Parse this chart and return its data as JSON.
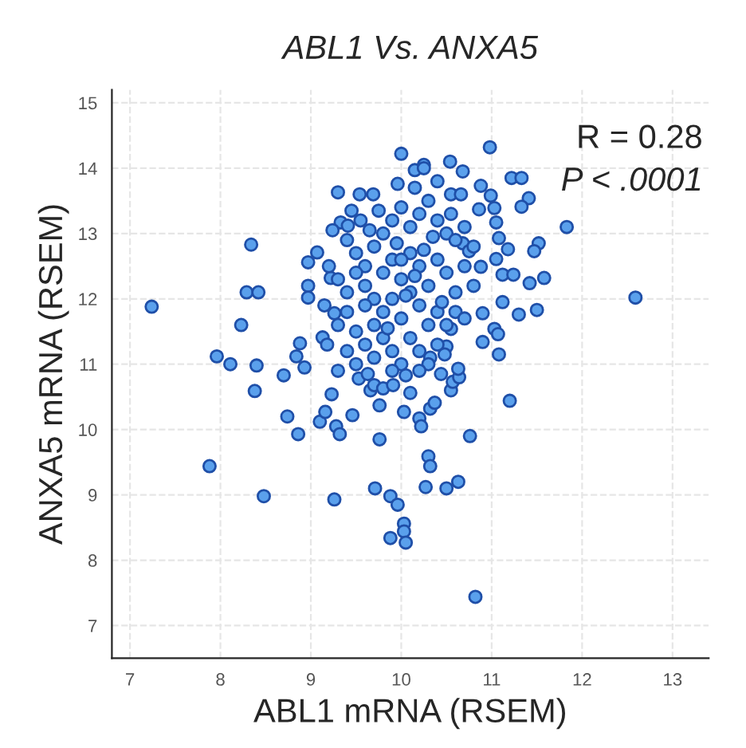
{
  "chart_data": {
    "type": "scatter",
    "title": "ABL1 Vs. ANXA5",
    "xlabel": "ABL1 mRNA (RSEM)",
    "ylabel": "ANXA5 mRNA (RSEM)",
    "annotations": [
      "R = 0.28",
      "P < .0001"
    ],
    "xlim": [
      6.8,
      13.4
    ],
    "ylim": [
      6.5,
      15.2
    ],
    "xticks": [
      7,
      8,
      9,
      10,
      11,
      12,
      13
    ],
    "yticks": [
      7,
      8,
      9,
      10,
      11,
      12,
      13,
      14,
      15
    ],
    "grid": true,
    "marker": "circle",
    "series": [
      {
        "color": "#5aa0ec",
        "x": [
          7.24,
          8.34,
          8.29,
          8.42,
          8.23,
          7.96,
          8.11,
          8.4,
          8.7,
          8.88,
          8.84,
          8.93,
          10.0,
          10.15,
          10.25,
          9.96,
          9.3,
          9.54,
          9.69,
          9.33,
          9.41,
          9.24,
          9.07,
          8.97,
          8.97,
          8.97,
          9.22,
          9.26,
          9.13,
          9.18,
          8.38,
          8.74,
          8.86,
          7.88,
          8.48,
          9.26,
          9.1,
          9.16,
          9.28,
          9.32,
          9.46,
          9.23,
          9.3,
          9.53,
          9.63,
          9.66,
          9.76,
          9.76,
          10.03,
          9.71,
          9.88,
          9.96,
          9.88,
          10.03,
          10.03,
          10.05,
          10.2,
          10.22,
          10.3,
          10.32,
          10.27,
          9.7,
          9.8,
          9.91,
          10.05,
          10.1,
          10.32,
          10.5,
          10.63,
          10.76,
          11.2,
          10.82,
          10.37,
          10.55,
          10.57,
          10.64,
          10.44,
          10.98,
          10.54,
          10.68,
          11.22,
          11.33,
          10.88,
          10.99,
          11.41,
          11.33,
          11.83,
          12.59,
          11.52,
          11.47,
          11.18,
          11.05,
          11.12,
          11.24,
          11.58,
          11.42,
          10.88,
          11.12,
          11.3,
          11.5,
          10.9,
          11.03,
          11.07,
          10.9,
          11.08,
          10.55,
          10.5,
          10.48,
          10.63,
          10.32,
          10.55,
          10.66,
          10.86,
          11.03,
          11.05,
          10.68,
          10.75,
          11.08,
          9.4,
          9.5,
          9.6,
          9.7,
          9.8,
          9.9,
          10.0,
          10.1,
          10.2,
          10.3,
          10.4,
          10.5,
          10.6,
          9.3,
          9.4,
          9.5,
          9.6,
          9.7,
          9.8,
          9.9,
          10.0,
          10.1,
          10.2,
          10.3,
          10.4,
          10.5,
          10.6,
          10.7,
          10.8,
          9.3,
          9.4,
          9.5,
          9.6,
          9.7,
          9.8,
          9.9,
          10.0,
          10.1,
          10.2,
          10.3,
          10.4,
          10.5,
          10.6,
          10.7,
          9.4,
          9.5,
          9.6,
          9.7,
          9.8,
          9.9,
          10.0,
          10.1,
          10.2,
          10.3,
          10.4,
          10.2,
          9.9,
          9.55,
          9.75,
          9.95,
          10.05,
          10.15,
          9.85,
          10.25,
          10.35,
          10.45,
          10.0,
          9.65,
          10.15,
          10.4,
          10.25,
          9.45,
          10.55,
          10.7,
          10.8,
          9.2,
          9.15
        ],
        "values": [
          11.88,
          12.83,
          12.1,
          12.1,
          11.6,
          11.12,
          11.0,
          10.98,
          10.83,
          11.32,
          11.12,
          10.95,
          14.22,
          13.97,
          14.05,
          13.76,
          13.63,
          13.6,
          13.6,
          13.17,
          13.12,
          13.05,
          12.71,
          12.56,
          12.2,
          12.02,
          12.32,
          11.78,
          11.41,
          11.3,
          10.59,
          10.2,
          9.93,
          9.44,
          8.98,
          8.93,
          10.12,
          10.27,
          10.05,
          9.93,
          10.22,
          10.54,
          10.9,
          10.78,
          10.85,
          10.6,
          10.37,
          9.85,
          10.27,
          9.1,
          8.98,
          8.85,
          8.34,
          8.56,
          8.44,
          8.27,
          10.17,
          10.05,
          9.59,
          9.44,
          9.12,
          10.68,
          10.63,
          10.68,
          10.83,
          10.56,
          10.32,
          9.1,
          9.2,
          9.9,
          10.44,
          7.44,
          10.41,
          10.6,
          10.73,
          10.8,
          10.85,
          14.32,
          14.1,
          13.95,
          13.85,
          13.85,
          13.73,
          13.58,
          13.54,
          13.41,
          13.1,
          12.02,
          12.85,
          12.73,
          12.76,
          12.61,
          12.37,
          12.37,
          12.32,
          12.24,
          12.49,
          11.95,
          11.76,
          11.83,
          11.78,
          11.54,
          11.46,
          11.34,
          11.15,
          11.54,
          11.27,
          11.15,
          10.93,
          11.1,
          13.6,
          13.6,
          13.37,
          13.39,
          13.17,
          12.85,
          12.73,
          12.93,
          12.9,
          12.7,
          12.5,
          12.8,
          13.0,
          13.2,
          13.4,
          13.1,
          13.3,
          13.5,
          13.2,
          13.0,
          12.9,
          12.3,
          12.1,
          12.4,
          12.2,
          12.0,
          12.4,
          12.6,
          12.3,
          12.7,
          12.5,
          12.2,
          12.6,
          12.4,
          12.1,
          12.5,
          12.2,
          11.6,
          11.8,
          11.5,
          11.9,
          11.6,
          11.8,
          12.0,
          11.7,
          12.1,
          11.9,
          11.6,
          11.8,
          11.6,
          11.8,
          11.7,
          11.2,
          11.0,
          11.3,
          11.1,
          11.4,
          11.2,
          11.0,
          11.4,
          11.2,
          11.0,
          11.3,
          10.9,
          10.9,
          13.2,
          13.35,
          12.85,
          12.05,
          12.35,
          11.55,
          12.75,
          12.95,
          11.95,
          12.6,
          13.05,
          13.7,
          13.8,
          14.0,
          13.35,
          13.3,
          13.1,
          12.8,
          12.5,
          11.9
        ]
      }
    ]
  }
}
